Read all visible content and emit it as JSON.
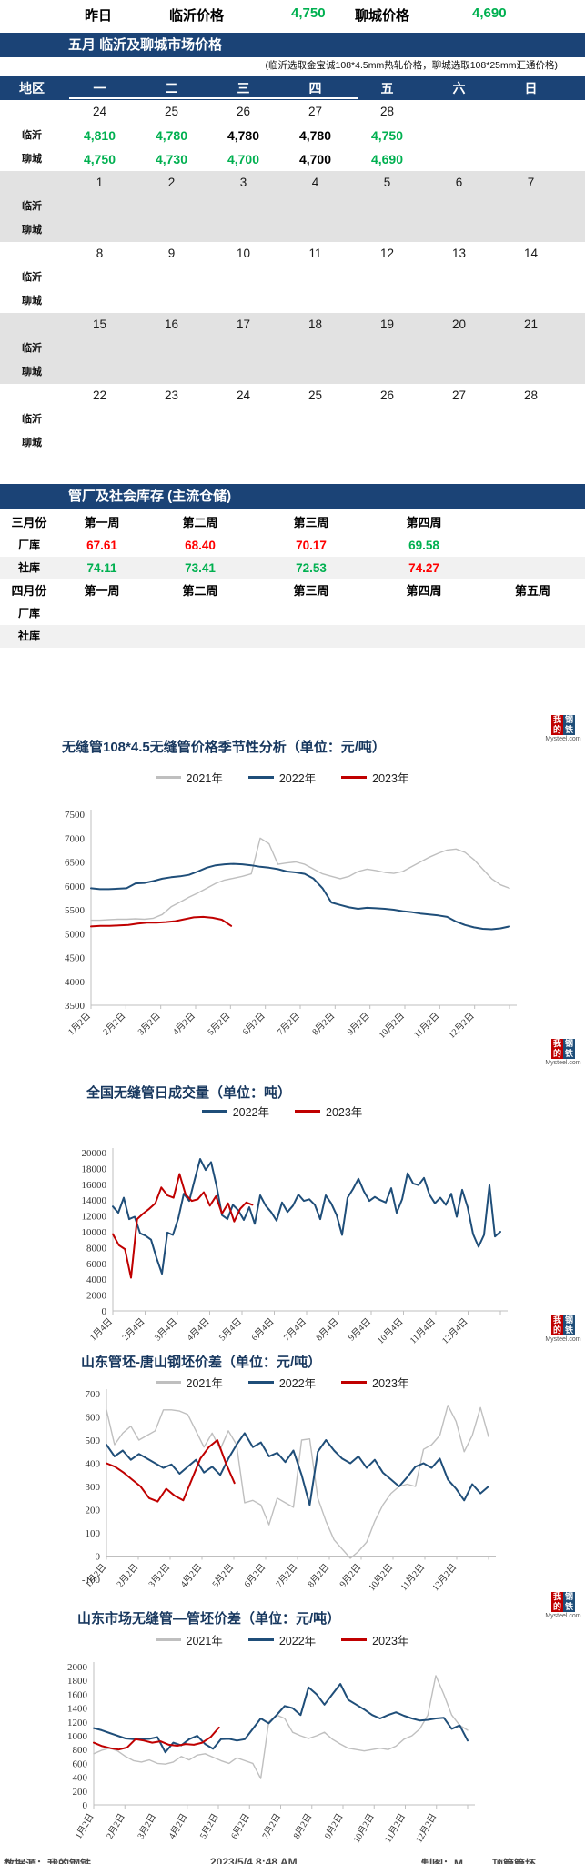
{
  "summary": {
    "yesterday_label": "昨日",
    "linyi_label": "临沂价格",
    "linyi_value": "4,750",
    "liaocheng_label": "聊城价格",
    "liaocheng_value": "4,690"
  },
  "price_section": {
    "title": "五月 临沂及聊城市场价格",
    "note": "(临沂选取金宝诚108*4.5mm热轧价格，聊城选取108*25mm汇通价格)",
    "header": {
      "region": "地区",
      "days": [
        "一",
        "二",
        "三",
        "四",
        "五",
        "六",
        "日"
      ]
    },
    "row_labels": {
      "linyi": "临沂",
      "liaocheng": "聊城"
    },
    "weeks": [
      {
        "shaded": false,
        "dates": [
          "24",
          "25",
          "26",
          "27",
          "28",
          "",
          ""
        ],
        "linyi": [
          {
            "v": "4,810",
            "c": "green"
          },
          {
            "v": "4,780",
            "c": "green"
          },
          {
            "v": "4,780",
            "c": "black"
          },
          {
            "v": "4,780",
            "c": "black"
          },
          {
            "v": "4,750",
            "c": "green"
          },
          null,
          null
        ],
        "liaocheng": [
          {
            "v": "4,750",
            "c": "green"
          },
          {
            "v": "4,730",
            "c": "green"
          },
          {
            "v": "4,700",
            "c": "green"
          },
          {
            "v": "4,700",
            "c": "black"
          },
          {
            "v": "4,690",
            "c": "green"
          },
          null,
          null
        ]
      },
      {
        "shaded": true,
        "dates": [
          "1",
          "2",
          "3",
          "4",
          "5",
          "6",
          "7"
        ],
        "linyi": [],
        "liaocheng": []
      },
      {
        "shaded": false,
        "dates": [
          "8",
          "9",
          "10",
          "11",
          "12",
          "13",
          "14"
        ],
        "linyi": [],
        "liaocheng": []
      },
      {
        "shaded": true,
        "dates": [
          "15",
          "16",
          "17",
          "18",
          "19",
          "20",
          "21"
        ],
        "linyi": [],
        "liaocheng": []
      },
      {
        "shaded": false,
        "dates": [
          "22",
          "23",
          "24",
          "25",
          "26",
          "27",
          "28"
        ],
        "linyi": [],
        "liaocheng": []
      }
    ]
  },
  "inventory_section": {
    "title": "管厂及社会库存 (主流仓储)",
    "groups": [
      {
        "month": "三月份",
        "week_headers": [
          "第一周",
          "第二周",
          "第三周",
          "第四周",
          ""
        ],
        "rows": [
          {
            "label": "厂库",
            "shaded": false,
            "values": [
              {
                "v": "67.61",
                "c": "red"
              },
              {
                "v": "68.40",
                "c": "red"
              },
              {
                "v": "70.17",
                "c": "red"
              },
              {
                "v": "69.58",
                "c": "green"
              }
            ]
          },
          {
            "label": "社库",
            "shaded": true,
            "values": [
              {
                "v": "74.11",
                "c": "green"
              },
              {
                "v": "73.41",
                "c": "green"
              },
              {
                "v": "72.53",
                "c": "green"
              },
              {
                "v": "74.27",
                "c": "red"
              }
            ]
          }
        ]
      },
      {
        "month": "四月份",
        "week_headers": [
          "第一周",
          "第二周",
          "第三周",
          "第四周",
          "第五周"
        ],
        "rows": [
          {
            "label": "厂库",
            "shaded": false,
            "values": []
          },
          {
            "label": "社库",
            "shaded": true,
            "values": []
          }
        ]
      }
    ]
  },
  "watermark": {
    "t1": "我的",
    "t2": "钢铁",
    "site": "Mysteel.com"
  },
  "footer": {
    "source": "数据源：我的钢铁",
    "datetime": "2023/5/4 8:48 AM",
    "author": "制图：M",
    "extra": "顶管管坯"
  },
  "chart_data": [
    {
      "type": "line",
      "title": "无缝管108*4.5无缝管价格季节性分析（单位：元/吨）",
      "ylim": [
        3500,
        7500
      ],
      "ytick_step": 500,
      "xlabels": [
        "1月2日",
        "2月2日",
        "3月2日",
        "4月2日",
        "5月2日",
        "6月2日",
        "7月2日",
        "8月2日",
        "9月2日",
        "10月2日",
        "11月2日",
        "12月2日"
      ],
      "legend_position": "top-center",
      "grid": false,
      "series": [
        {
          "name": "2021年",
          "color": "#BFBFBF",
          "span": [
            0,
            1
          ],
          "values": [
            5280,
            5280,
            5290,
            5300,
            5300,
            5310,
            5300,
            5320,
            5400,
            5560,
            5660,
            5760,
            5850,
            5950,
            6050,
            6120,
            6160,
            6200,
            6250,
            7000,
            6880,
            6450,
            6480,
            6500,
            6450,
            6350,
            6250,
            6200,
            6150,
            6200,
            6300,
            6350,
            6320,
            6280,
            6260,
            6300,
            6400,
            6500,
            6600,
            6680,
            6750,
            6770,
            6700,
            6550,
            6350,
            6150,
            6020,
            5950
          ]
        },
        {
          "name": "2022年",
          "color": "#1F4E79",
          "span": [
            0,
            1
          ],
          "values": [
            5950,
            5930,
            5930,
            5940,
            5950,
            6050,
            6060,
            6100,
            6150,
            6180,
            6200,
            6230,
            6300,
            6380,
            6430,
            6450,
            6460,
            6450,
            6430,
            6400,
            6380,
            6350,
            6300,
            6280,
            6250,
            6150,
            5950,
            5650,
            5600,
            5550,
            5520,
            5540,
            5530,
            5520,
            5500,
            5470,
            5450,
            5420,
            5400,
            5380,
            5350,
            5250,
            5180,
            5130,
            5100,
            5090,
            5110,
            5150
          ]
        },
        {
          "name": "2023年",
          "color": "#C00000",
          "span": [
            0,
            0.335
          ],
          "values": [
            5150,
            5160,
            5160,
            5170,
            5180,
            5210,
            5230,
            5230,
            5240,
            5260,
            5300,
            5340,
            5350,
            5330,
            5290,
            5160
          ]
        }
      ]
    },
    {
      "type": "line",
      "title": "全国无缝管日成交量（单位：吨）",
      "ylim": [
        0,
        20000
      ],
      "ytick_step": 2000,
      "xlabels": [
        "1月4日",
        "2月4日",
        "3月4日",
        "4月4日",
        "5月4日",
        "6月4日",
        "7月4日",
        "8月4日",
        "9月4日",
        "10月4日",
        "11月4日",
        "12月4日"
      ],
      "legend_position": "top-center",
      "grid": false,
      "series": [
        {
          "name": "2022年",
          "color": "#1F4E79",
          "span": [
            0,
            1
          ],
          "values": [
            13200,
            12400,
            14300,
            11600,
            11900,
            9800,
            9500,
            9000,
            6700,
            4700,
            9900,
            9600,
            11700,
            14800,
            13900,
            16600,
            19200,
            17800,
            18800,
            15800,
            12100,
            11600,
            13400,
            12700,
            11500,
            13100,
            11000,
            14600,
            13300,
            12500,
            11400,
            13700,
            12500,
            13300,
            14700,
            13900,
            14100,
            13400,
            11600,
            14600,
            13600,
            12100,
            9600,
            14300,
            15400,
            16700,
            15100,
            13900,
            14400,
            14000,
            13700,
            15500,
            12400,
            14100,
            17400,
            16100,
            15900,
            16800,
            14700,
            13600,
            14300,
            13400,
            14800,
            11900,
            15300,
            13100,
            9700,
            8100,
            9600,
            15900,
            9400,
            10000
          ]
        },
        {
          "name": "2023年",
          "color": "#C00000",
          "span": [
            0,
            0.36
          ],
          "values": [
            9700,
            8300,
            7800,
            4200,
            11600,
            12300,
            12900,
            13600,
            15600,
            14600,
            14300,
            17300,
            14700,
            13900,
            14100,
            15000,
            13300,
            14500,
            12300,
            13600,
            11300,
            12900,
            13700,
            13400
          ]
        }
      ]
    },
    {
      "type": "line",
      "title": "山东管坯-唐山钢坯价差（单位：元/吨）",
      "ylim": [
        -100,
        700
      ],
      "ytick_step": 100,
      "xlabels": [
        "1月2日",
        "2月2日",
        "3月2日",
        "4月2日",
        "5月2日",
        "6月2日",
        "7月2日",
        "8月2日",
        "9月2日",
        "10月2日",
        "11月2日",
        "12月2日"
      ],
      "legend_position": "top-center",
      "grid": false,
      "series": [
        {
          "name": "2021年",
          "color": "#BFBFBF",
          "span": [
            0,
            1
          ],
          "values": [
            630,
            480,
            530,
            560,
            500,
            520,
            540,
            630,
            630,
            625,
            610,
            540,
            470,
            530,
            460,
            540,
            480,
            230,
            240,
            220,
            135,
            250,
            230,
            210,
            500,
            505,
            250,
            150,
            70,
            30,
            -10,
            20,
            60,
            150,
            220,
            270,
            300,
            310,
            300,
            460,
            480,
            520,
            650,
            580,
            450,
            520,
            640,
            515
          ]
        },
        {
          "name": "2022年",
          "color": "#1F4E79",
          "span": [
            0,
            1
          ],
          "values": [
            480,
            430,
            455,
            415,
            440,
            420,
            400,
            380,
            395,
            355,
            385,
            415,
            360,
            385,
            350,
            420,
            480,
            530,
            470,
            490,
            430,
            445,
            405,
            455,
            350,
            220,
            450,
            500,
            455,
            420,
            400,
            430,
            380,
            415,
            360,
            330,
            300,
            340,
            385,
            400,
            380,
            420,
            330,
            290,
            240,
            310,
            270,
            300
          ]
        },
        {
          "name": "2023年",
          "color": "#C00000",
          "span": [
            0,
            0.335
          ],
          "values": [
            400,
            385,
            360,
            330,
            300,
            250,
            235,
            290,
            260,
            240,
            330,
            420,
            470,
            500,
            400,
            315
          ]
        }
      ]
    },
    {
      "type": "line",
      "title": "山东市场无缝管—管坯价差（单位：元/吨）",
      "ylim": [
        0,
        2000
      ],
      "ytick_step": 200,
      "xlabels": [
        "1月2日",
        "2月2日",
        "3月2日",
        "4月2日",
        "5月2日",
        "6月2日",
        "7月2日",
        "8月2日",
        "9月2日",
        "10月2日",
        "11月2日",
        "12月2日"
      ],
      "legend_position": "top-center",
      "grid": false,
      "series": [
        {
          "name": "2021年",
          "color": "#BFBFBF",
          "span": [
            0,
            1
          ],
          "values": [
            740,
            790,
            820,
            780,
            700,
            640,
            620,
            650,
            600,
            590,
            620,
            700,
            650,
            720,
            740,
            690,
            640,
            600,
            680,
            640,
            600,
            380,
            1200,
            1300,
            1250,
            1050,
            1000,
            960,
            1000,
            1050,
            950,
            880,
            820,
            800,
            780,
            800,
            820,
            800,
            850,
            950,
            1000,
            1100,
            1300,
            1870,
            1600,
            1300,
            1150,
            1080
          ]
        },
        {
          "name": "2022年",
          "color": "#1F4E79",
          "span": [
            0,
            1
          ],
          "values": [
            1110,
            1080,
            1040,
            1000,
            960,
            950,
            950,
            955,
            980,
            760,
            900,
            860,
            950,
            1000,
            880,
            810,
            950,
            955,
            930,
            950,
            1100,
            1250,
            1180,
            1300,
            1430,
            1400,
            1300,
            1700,
            1600,
            1450,
            1600,
            1750,
            1520,
            1450,
            1380,
            1300,
            1250,
            1300,
            1340,
            1290,
            1250,
            1220,
            1230,
            1250,
            1260,
            1100,
            1150,
            930
          ]
        },
        {
          "name": "2023年",
          "color": "#C00000",
          "span": [
            0,
            0.335
          ],
          "values": [
            900,
            850,
            820,
            800,
            830,
            950,
            930,
            900,
            920,
            870,
            855,
            880,
            870,
            900,
            980,
            1120
          ]
        }
      ]
    }
  ]
}
